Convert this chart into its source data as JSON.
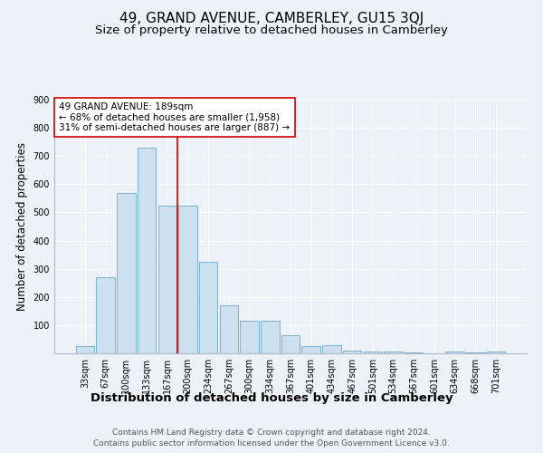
{
  "title": "49, GRAND AVENUE, CAMBERLEY, GU15 3QJ",
  "subtitle": "Size of property relative to detached houses in Camberley",
  "xlabel": "Distribution of detached houses by size in Camberley",
  "ylabel": "Number of detached properties",
  "categories": [
    "33sqm",
    "67sqm",
    "100sqm",
    "133sqm",
    "167sqm",
    "200sqm",
    "234sqm",
    "267sqm",
    "300sqm",
    "334sqm",
    "367sqm",
    "401sqm",
    "434sqm",
    "467sqm",
    "501sqm",
    "534sqm",
    "567sqm",
    "601sqm",
    "634sqm",
    "668sqm",
    "701sqm"
  ],
  "values": [
    25,
    270,
    570,
    730,
    525,
    525,
    325,
    170,
    115,
    115,
    65,
    25,
    30,
    10,
    8,
    5,
    2,
    0,
    5,
    2,
    5
  ],
  "bar_color": "#cce0f0",
  "bar_edge_color": "#7ab0d4",
  "background_color": "#edf2f8",
  "vline_x_index": 5,
  "vline_color": "#cc0000",
  "annotation_text": "49 GRAND AVENUE: 189sqm\n← 68% of detached houses are smaller (1,958)\n31% of semi-detached houses are larger (887) →",
  "annotation_box_facecolor": "#ffffff",
  "annotation_box_edgecolor": "#cc0000",
  "ylim": [
    0,
    900
  ],
  "yticks": [
    0,
    100,
    200,
    300,
    400,
    500,
    600,
    700,
    800,
    900
  ],
  "footer_line1": "Contains HM Land Registry data © Crown copyright and database right 2024.",
  "footer_line2": "Contains public sector information licensed under the Open Government Licence v3.0.",
  "title_fontsize": 11,
  "subtitle_fontsize": 9.5,
  "xlabel_fontsize": 9.5,
  "ylabel_fontsize": 8.5,
  "tick_fontsize": 7,
  "annotation_fontsize": 7.5,
  "footer_fontsize": 6.5,
  "grid_color": "#d0dce8"
}
